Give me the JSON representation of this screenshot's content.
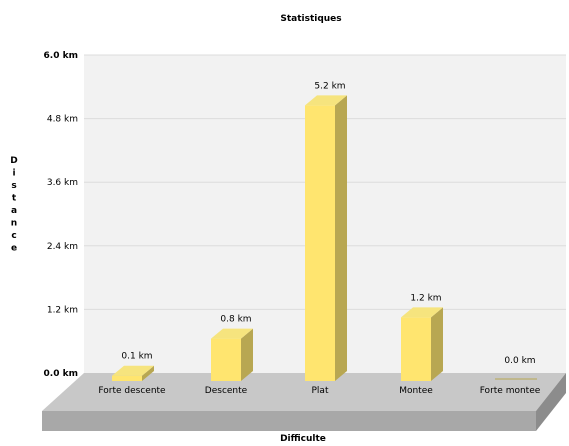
{
  "chart_data": {
    "type": "bar",
    "title": "Statistiques",
    "xlabel": "Difficulte",
    "ylabel": "Distance",
    "categories": [
      "Forte descente",
      "Descente",
      "Plat",
      "Montee",
      "Forte montee"
    ],
    "values": [
      0.1,
      0.8,
      5.2,
      1.2,
      0.0
    ],
    "data_labels": [
      "0.1 km",
      "0.8 km",
      "5.2 km",
      "1.2 km",
      "0.0 km"
    ],
    "yticks": [
      "0.0 km",
      "1.2 km",
      "2.4 km",
      "3.6 km",
      "4.8 km",
      "6.0 km"
    ],
    "ylim": [
      0,
      6
    ],
    "unit": "km",
    "grid": true,
    "legend": "none",
    "three_d": true,
    "colors": {
      "bar_front": "#ffe56f",
      "bar_side": "#b8a752",
      "bar_top": "#f6e47e",
      "plot_bg": "#f2f2f2",
      "floor_top": "#c8c8c8",
      "floor_front": "#a8a8a8",
      "floor_side": "#8c8c8c",
      "grid": "#dcdcdc",
      "text": "#000000"
    }
  }
}
